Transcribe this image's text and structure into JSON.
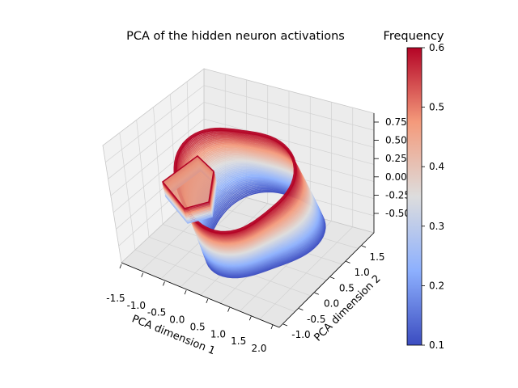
{
  "chart_data": {
    "type": "surface3d",
    "title": "PCA of the hidden neuron activations",
    "xlabel": "PCA dimension 1",
    "ylabel": "PCA dimension 2",
    "zlabel": "",
    "x_ticks": [
      "-1.5",
      "-1.0",
      "-0.5",
      "0.0",
      "0.5",
      "1.0",
      "1.5",
      "2.0"
    ],
    "y_ticks": [
      "-1.0",
      "-0.5",
      "0.0",
      "0.5",
      "1.0",
      "1.5"
    ],
    "z_ticks": [
      "0.75",
      "0.50",
      "0.25",
      "0.00",
      "-0.25",
      "-0.50"
    ],
    "xlim": [
      -1.75,
      2.2
    ],
    "ylim": [
      -1.3,
      1.75
    ],
    "zlim": [
      -0.75,
      0.9
    ],
    "colorbar": {
      "title": "Frequency",
      "min": 0.1,
      "max": 0.6,
      "ticks": [
        "0.6",
        "0.5",
        "0.4",
        "0.3",
        "0.2",
        "0.1"
      ],
      "colormap": "coolwarm",
      "color_low": "#3b4cc0",
      "color_mid": "#dddddd",
      "color_high": "#b40426"
    },
    "surface": {
      "shape": "closed-loop band swept over frequency",
      "frequency_range": [
        0.1,
        0.6
      ],
      "curve_count": 60
    },
    "grid": true
  }
}
